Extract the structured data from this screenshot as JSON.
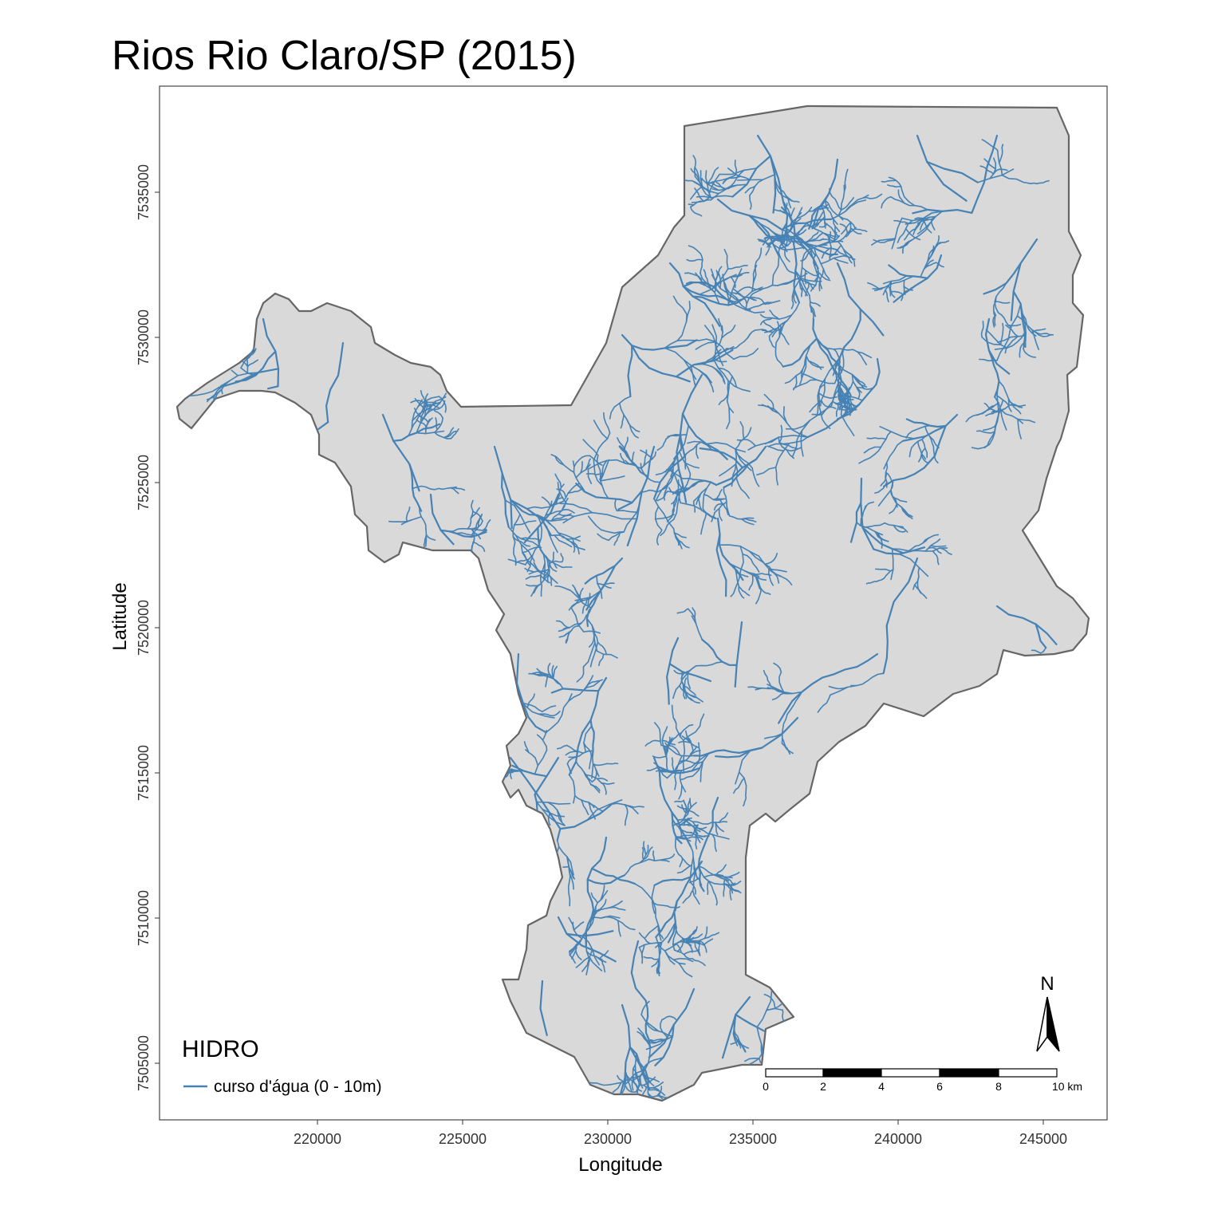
{
  "title": "Rios Rio Claro/SP (2015)",
  "map": {
    "x_label": "Longitude",
    "y_label": "Latitude",
    "x_ticks": [
      "220000",
      "225000",
      "230000",
      "235000",
      "240000",
      "245000"
    ],
    "y_ticks": [
      "7505000",
      "7510000",
      "7515000",
      "7520000",
      "7525000",
      "7530000",
      "7535000"
    ],
    "region_fill": "#d9d9d9",
    "region_stroke": "#666666",
    "river_color": "#4682b4"
  },
  "legend": {
    "title": "HIDRO",
    "item_label": "curso d'água (0 - 10m)"
  },
  "scalebar": {
    "labels": [
      "0",
      "2",
      "4",
      "6",
      "8",
      "10 km"
    ]
  },
  "north_arrow": {
    "label": "N"
  }
}
